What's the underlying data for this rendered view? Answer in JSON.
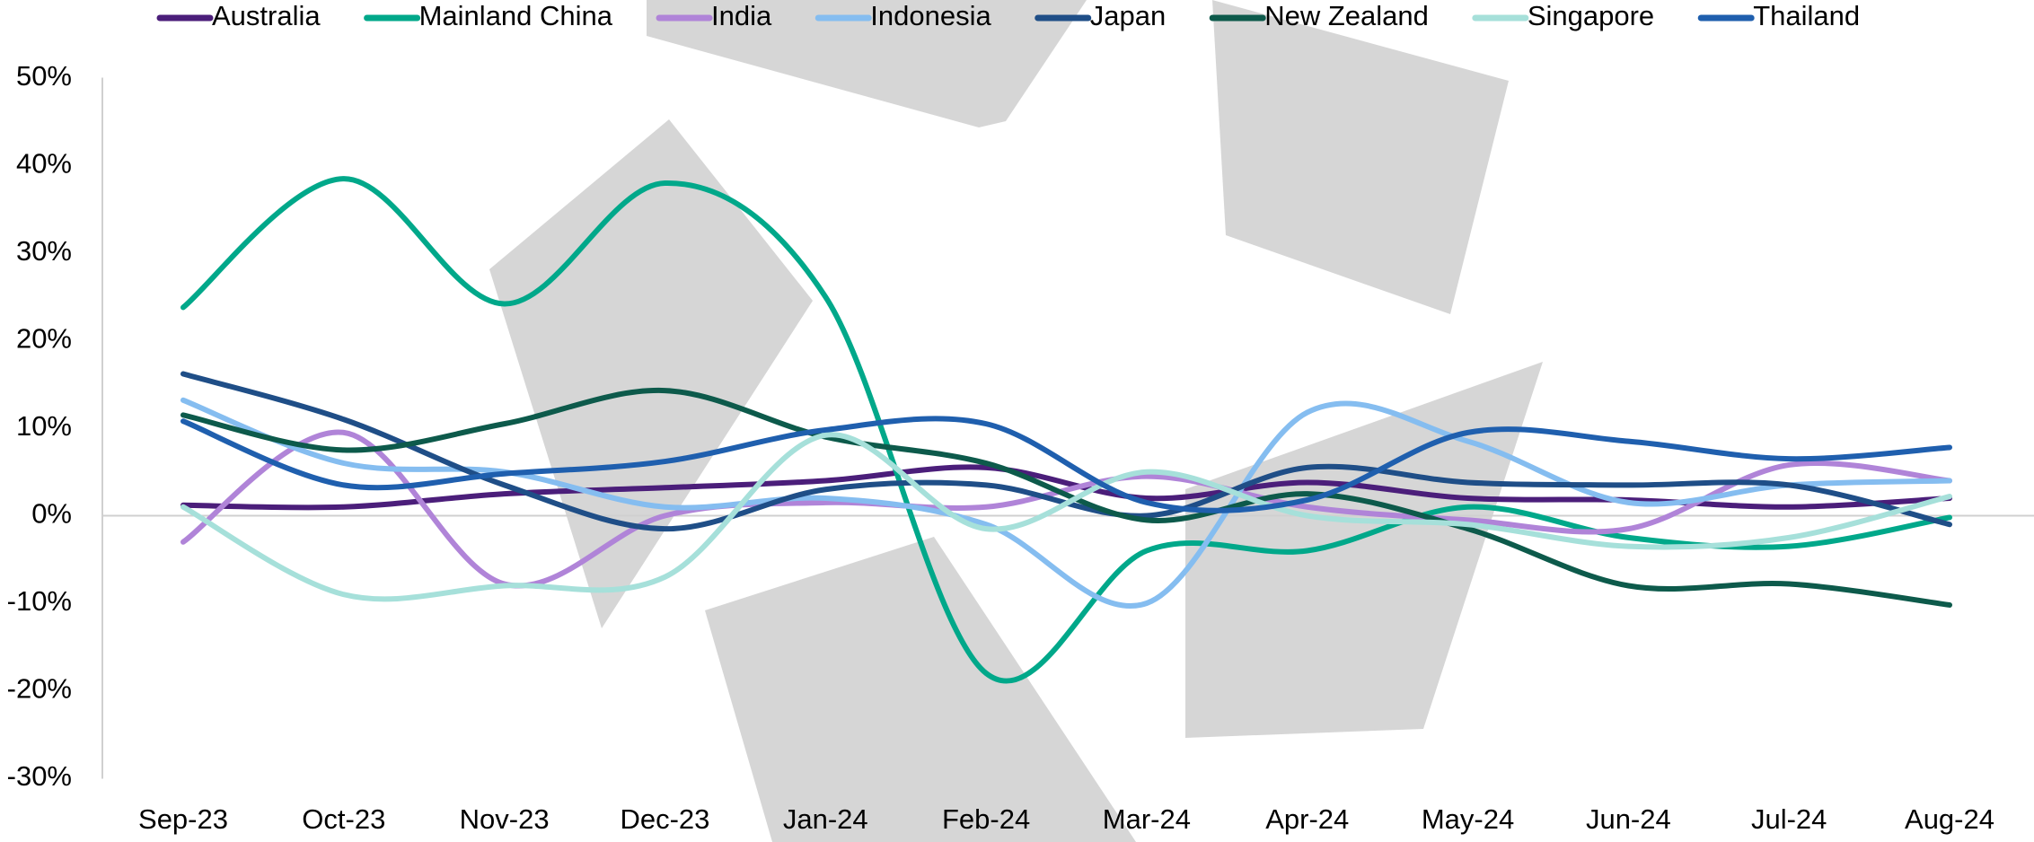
{
  "chart_data": {
    "type": "line",
    "categories": [
      "Sep-23",
      "Oct-23",
      "Nov-23",
      "Dec-23",
      "Jan-24",
      "Feb-24",
      "Mar-24",
      "Apr-24",
      "May-24",
      "Jun-24",
      "Jul-24",
      "Aug-24"
    ],
    "series": [
      {
        "name": "Australia",
        "color": "#4b1e7a",
        "values": [
          1.2,
          1,
          2.5,
          3.2,
          4,
          5.5,
          2,
          3.8,
          2,
          1.8,
          1,
          2
        ]
      },
      {
        "name": "Mainland China",
        "color": "#00a88a",
        "values": [
          23.8,
          38.5,
          24.2,
          38,
          25,
          -18,
          -4,
          -4,
          1,
          -2.5,
          -3.5,
          -0.2
        ]
      },
      {
        "name": "India",
        "color": "#b084d8",
        "values": [
          -3,
          9.5,
          -7.8,
          0,
          1.5,
          1,
          4.5,
          1,
          -0.5,
          -1.5,
          5.8,
          4
        ]
      },
      {
        "name": "Indonesia",
        "color": "#85bdf0",
        "values": [
          13.2,
          6,
          5,
          1,
          2,
          -1,
          -10,
          11.8,
          8.5,
          1.5,
          3.5,
          4
        ]
      },
      {
        "name": "Japan",
        "color": "#1f4e87",
        "values": [
          16.2,
          11,
          3.5,
          -1.5,
          3,
          3.5,
          0,
          5.5,
          3.8,
          3.5,
          3.5,
          -1
        ]
      },
      {
        "name": "New Zealand",
        "color": "#0d5a4b",
        "values": [
          11.5,
          7.5,
          10.5,
          14.3,
          9,
          6,
          -0.5,
          2.5,
          -1.5,
          -8,
          -7.8,
          -10.2
        ]
      },
      {
        "name": "Singapore",
        "color": "#a6e0da",
        "values": [
          1,
          -9,
          -8,
          -7,
          9.2,
          -1.5,
          5,
          0,
          -1,
          -3.5,
          -2.5,
          2.2
        ]
      },
      {
        "name": "Thailand",
        "color": "#1f5fae",
        "values": [
          10.8,
          3.5,
          4.8,
          6.2,
          9.8,
          10.5,
          1.5,
          1.8,
          9.5,
          8.5,
          6.5,
          7.8
        ]
      }
    ],
    "ylim": [
      -30,
      50
    ],
    "yticks": [
      {
        "value": -30,
        "label": "-30%"
      },
      {
        "value": -20,
        "label": "-20%"
      },
      {
        "value": -10,
        "label": "-10%"
      },
      {
        "value": 0,
        "label": "0%"
      },
      {
        "value": 10,
        "label": "10%"
      },
      {
        "value": 20,
        "label": "20%"
      },
      {
        "value": 30,
        "label": "30%"
      },
      {
        "value": 40,
        "label": "40%"
      },
      {
        "value": 50,
        "label": "50%"
      }
    ],
    "smooth": true,
    "legend": "top"
  }
}
